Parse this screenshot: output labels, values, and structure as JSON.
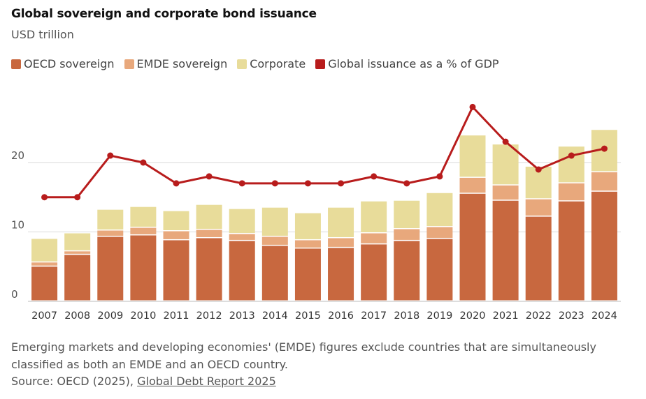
{
  "chart_data": {
    "type": "bar",
    "title": "Global sovereign and corporate bond issuance",
    "subtitle": "USD trillion",
    "categories": [
      "2007",
      "2008",
      "2009",
      "2010",
      "2011",
      "2012",
      "2013",
      "2014",
      "2015",
      "2016",
      "2017",
      "2018",
      "2019",
      "2020",
      "2021",
      "2022",
      "2023",
      "2024"
    ],
    "series": [
      {
        "name": "OECD sovereign",
        "type": "bar",
        "color": "#c8683f",
        "values": [
          5.0,
          6.7,
          9.3,
          9.5,
          8.8,
          9.1,
          8.7,
          8.0,
          7.6,
          7.7,
          8.2,
          8.7,
          9.0,
          15.5,
          14.5,
          12.2,
          14.4,
          15.8
        ]
      },
      {
        "name": "EMDE sovereign",
        "type": "bar",
        "color": "#e8a87c",
        "values": [
          0.6,
          0.5,
          0.9,
          1.1,
          1.3,
          1.2,
          1.0,
          1.3,
          1.2,
          1.4,
          1.6,
          1.7,
          1.7,
          2.3,
          2.2,
          2.5,
          2.6,
          2.8
        ]
      },
      {
        "name": "Corporate",
        "type": "bar",
        "color": "#e8dc9a",
        "values": [
          3.4,
          2.6,
          3.0,
          3.0,
          2.9,
          3.6,
          3.6,
          4.2,
          3.9,
          4.4,
          4.6,
          4.1,
          4.9,
          6.1,
          5.9,
          4.7,
          5.3,
          6.1
        ]
      },
      {
        "name": "Global issuance as a % of GDP",
        "type": "line",
        "color": "#b81c1c",
        "values": [
          15,
          15,
          21,
          20,
          17,
          18,
          17,
          17,
          17,
          17,
          18,
          17,
          18,
          28,
          23,
          19,
          21,
          22
        ]
      }
    ],
    "ylim": [
      0,
      27
    ],
    "yticks": [
      "0",
      "10",
      "20"
    ],
    "legend": [
      "OECD sovereign",
      "EMDE sovereign",
      "Corporate",
      "Global issuance as a % of GDP"
    ],
    "legend_position": "top-left",
    "grid": true
  },
  "footer": {
    "note": "Emerging markets and developing economies' (EMDE) figures exclude countries that are simultaneously classified as both an EMDE and an OECD country.",
    "source_prefix": "Source: OECD (2025), ",
    "source_link": "Global Debt Report 2025"
  }
}
